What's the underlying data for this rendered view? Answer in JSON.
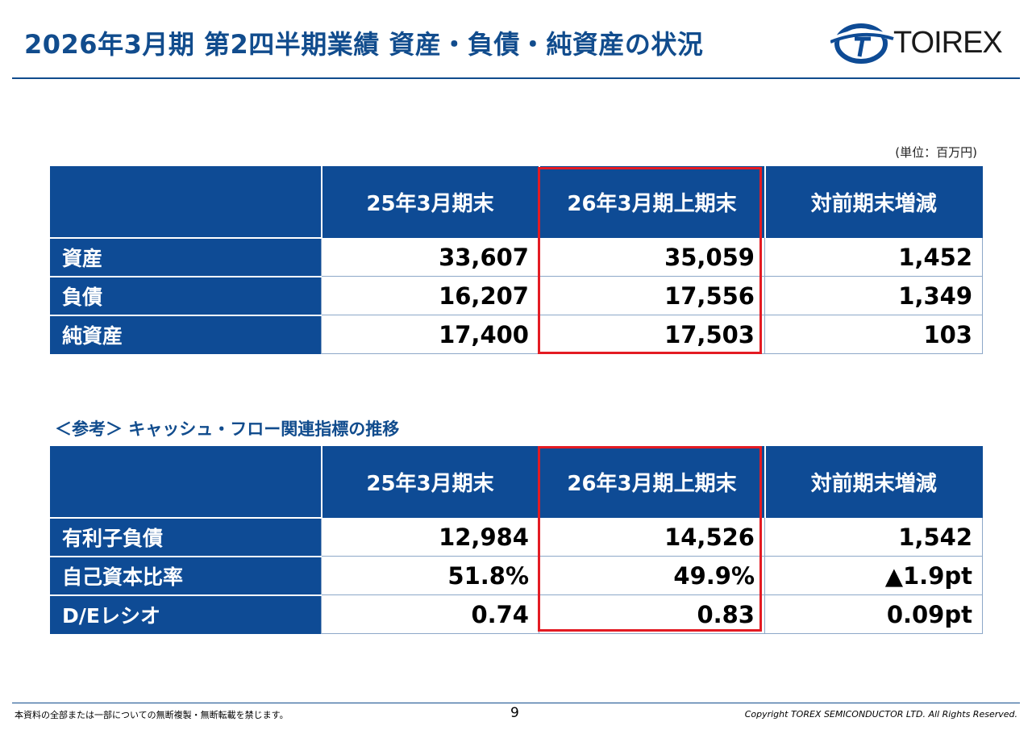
{
  "header": {
    "title": "2026年3月期 第2四半期業績 資産・負債・純資産の状況",
    "logo_text": "TOIREX"
  },
  "unit_note": "(単位：百万円)",
  "balance_table": {
    "columns": [
      "25年3月期末",
      "26年3月期上期末",
      "対前期末増減"
    ],
    "rows": [
      {
        "label": "資産",
        "values": [
          "33,607",
          "35,059",
          "1,452"
        ]
      },
      {
        "label": "負債",
        "values": [
          "16,207",
          "17,556",
          "1,349"
        ]
      },
      {
        "label": "純資産",
        "values": [
          "17,400",
          "17,503",
          "103"
        ]
      }
    ]
  },
  "cashflow_section": {
    "title": "＜参考＞ キャッシュ・フロー関連指標の推移",
    "columns": [
      "25年3月期末",
      "26年3月期上期末",
      "対前期末増減"
    ],
    "rows": [
      {
        "label": "有利子負債",
        "values": [
          "12,984",
          "14,526",
          "1,542"
        ]
      },
      {
        "label": "自己資本比率",
        "values": [
          "51.8%",
          "49.9%",
          "▲1.9pt"
        ]
      },
      {
        "label": "D/Eレシオ",
        "values": [
          "0.74",
          "0.83",
          "0.09pt"
        ]
      }
    ]
  },
  "footer": {
    "note": "本資料の全部または一部についての無断複製・無断転載を禁じます。",
    "page": "9",
    "copyright": "Copyright TOREX SEMICONDUCTOR LTD.  All Rights Reserved."
  },
  "colors": {
    "primary": "#0e4b95",
    "title": "#114c8d",
    "highlight": "#e31b23"
  }
}
